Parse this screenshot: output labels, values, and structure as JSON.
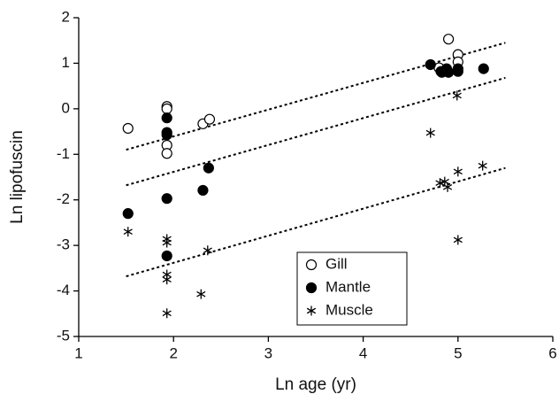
{
  "chart_data": {
    "type": "scatter",
    "xlabel": "Ln age (yr)",
    "ylabel": "Ln lipofuscin",
    "xlim": [
      1,
      6
    ],
    "ylim": [
      -5,
      2
    ],
    "xticks": [
      1,
      2,
      3,
      4,
      5,
      6
    ],
    "yticks": [
      -5,
      -4,
      -3,
      -2,
      -1,
      0,
      1,
      2
    ],
    "legend": "lower-center",
    "series": [
      {
        "name": "Gill",
        "color": "#000000",
        "marker": "open-circle",
        "x": [
          1.52,
          1.93,
          1.93,
          1.93,
          1.93,
          2.31,
          2.38,
          4.9,
          4.83,
          4.88,
          5.0,
          5.0,
          4.8
        ],
        "values": [
          -0.43,
          0.05,
          0.0,
          -0.8,
          -0.98,
          -0.33,
          -0.23,
          1.53,
          0.8,
          0.82,
          1.19,
          1.03,
          0.9
        ],
        "trend": {
          "x": [
            1.5,
            5.5
          ],
          "values": [
            -0.9,
            1.45
          ]
        }
      },
      {
        "name": "Mantle",
        "color": "#000000",
        "marker": "filled-circle",
        "x": [
          1.52,
          1.93,
          1.93,
          1.93,
          1.93,
          1.93,
          2.31,
          2.37,
          4.71,
          4.82,
          4.88,
          5.0,
          5.0,
          4.9,
          5.27
        ],
        "values": [
          -2.3,
          -0.2,
          -0.52,
          -0.57,
          -1.97,
          -3.23,
          -1.79,
          -1.3,
          0.97,
          0.82,
          0.88,
          0.82,
          0.88,
          0.8,
          0.88
        ],
        "trend": {
          "x": [
            1.5,
            5.5
          ],
          "values": [
            -1.68,
            0.68
          ]
        }
      },
      {
        "name": "Muscle",
        "color": "#000000",
        "marker": "asterisk",
        "x": [
          1.52,
          1.93,
          1.93,
          1.93,
          1.93,
          1.93,
          2.29,
          2.36,
          4.71,
          4.99,
          4.81,
          4.86,
          4.89,
          5.0,
          5.26,
          5.0
        ],
        "values": [
          -2.7,
          -2.86,
          -2.94,
          -3.64,
          -3.75,
          -4.49,
          -4.07,
          -3.11,
          -0.53,
          0.29,
          -1.63,
          -1.6,
          -1.72,
          -1.38,
          -1.25,
          -2.88
        ],
        "trend": {
          "x": [
            1.5,
            5.5
          ],
          "values": [
            -3.68,
            -1.3
          ]
        }
      }
    ]
  }
}
